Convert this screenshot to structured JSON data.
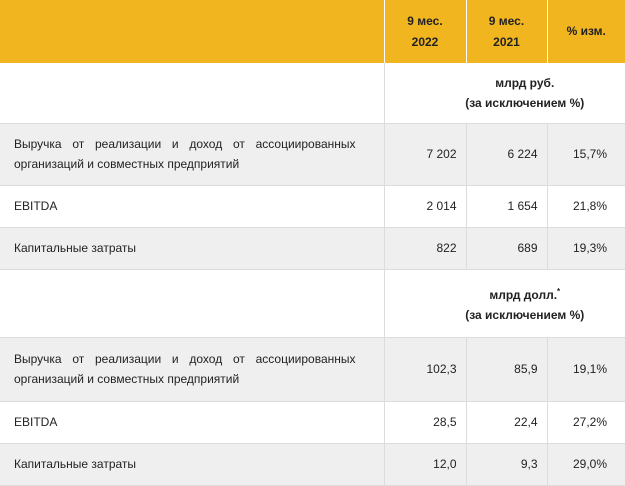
{
  "header": {
    "col1_line1": "9 мес.",
    "col1_line2": "2022",
    "col2_line1": "9 мес.",
    "col2_line2": "2021",
    "col3": "% изм."
  },
  "rub_section": {
    "unit_line1": "млрд руб.",
    "unit_line2": "(за исключением %)",
    "rows": [
      {
        "label": "Выручка от реализации и доход от ассоциированных организаций и совместных предприятий",
        "v2022": "7 202",
        "v2021": "6 224",
        "change": "15,7%"
      },
      {
        "label": "EBITDA",
        "v2022": "2 014",
        "v2021": "1 654",
        "change": "21,8%"
      },
      {
        "label": "Капитальные затраты",
        "v2022": "822",
        "v2021": "689",
        "change": "19,3%"
      }
    ]
  },
  "usd_section": {
    "unit_line1": "млрд долл.",
    "unit_footnote_mark": "*",
    "unit_line2": "(за исключением %)",
    "rows": [
      {
        "label": "Выручка от реализации и доход от ассоциированных организаций и совместных предприятий",
        "v2022": "102,3",
        "v2021": "85,9",
        "change": "19,1%"
      },
      {
        "label": "EBITDA",
        "v2022": "28,5",
        "v2021": "22,4",
        "change": "27,2%"
      },
      {
        "label": "Капитальные затраты",
        "v2022": "12,0",
        "v2021": "9,3",
        "change": "29,0%"
      }
    ]
  }
}
